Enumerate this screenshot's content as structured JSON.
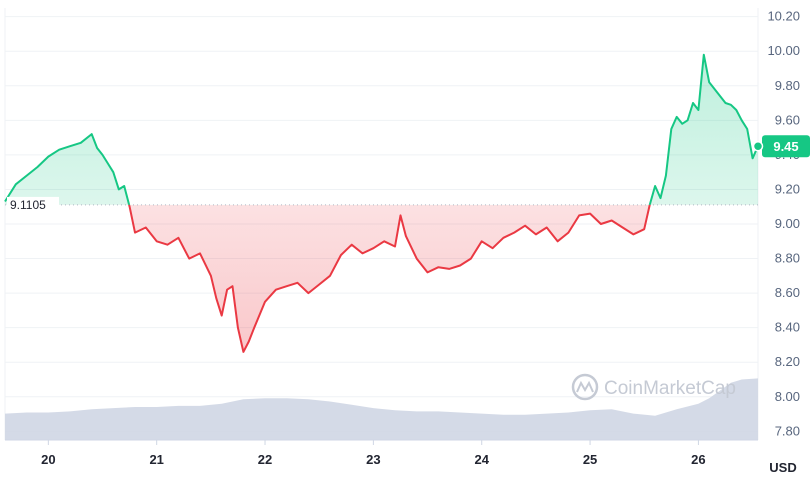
{
  "chart_data": {
    "type": "line",
    "currency": "USD",
    "baseline": {
      "value": 9.1105,
      "label": "9.1105"
    },
    "current_price": {
      "value": 9.45,
      "label": "9.45"
    },
    "ylim": [
      7.75,
      10.25
    ],
    "y_ticks": [
      "10.20",
      "10.00",
      "9.80",
      "9.60",
      "9.40",
      "9.20",
      "9.00",
      "8.80",
      "8.60",
      "8.40",
      "8.20",
      "8.00",
      "7.80"
    ],
    "x_range": [
      19.6,
      26.55
    ],
    "x_ticks": [
      "20",
      "21",
      "22",
      "23",
      "24",
      "25",
      "26"
    ],
    "price_series": {
      "x": [
        19.6,
        19.7,
        19.8,
        19.9,
        20.0,
        20.1,
        20.2,
        20.3,
        20.4,
        20.45,
        20.5,
        20.55,
        20.6,
        20.65,
        20.7,
        20.75,
        20.8,
        20.9,
        21.0,
        21.1,
        21.2,
        21.3,
        21.4,
        21.5,
        21.55,
        21.6,
        21.65,
        21.7,
        21.75,
        21.8,
        21.85,
        21.9,
        22.0,
        22.1,
        22.2,
        22.3,
        22.4,
        22.5,
        22.6,
        22.7,
        22.8,
        22.9,
        23.0,
        23.1,
        23.2,
        23.25,
        23.3,
        23.4,
        23.5,
        23.6,
        23.7,
        23.8,
        23.9,
        24.0,
        24.1,
        24.2,
        24.3,
        24.4,
        24.5,
        24.6,
        24.7,
        24.8,
        24.9,
        25.0,
        25.1,
        25.2,
        25.3,
        25.4,
        25.5,
        25.55,
        25.6,
        25.65,
        25.7,
        25.75,
        25.8,
        25.85,
        25.9,
        25.95,
        26.0,
        26.05,
        26.1,
        26.15,
        26.2,
        26.25,
        26.3,
        26.35,
        26.4,
        26.45,
        26.5,
        26.55
      ],
      "y": [
        9.13,
        9.23,
        9.28,
        9.33,
        9.39,
        9.43,
        9.45,
        9.47,
        9.52,
        9.44,
        9.4,
        9.35,
        9.3,
        9.2,
        9.22,
        9.1,
        8.95,
        8.98,
        8.9,
        8.88,
        8.92,
        8.8,
        8.83,
        8.7,
        8.57,
        8.47,
        8.62,
        8.64,
        8.4,
        8.26,
        8.32,
        8.4,
        8.55,
        8.62,
        8.64,
        8.66,
        8.6,
        8.65,
        8.7,
        8.82,
        8.88,
        8.83,
        8.86,
        8.9,
        8.87,
        9.05,
        8.93,
        8.8,
        8.72,
        8.75,
        8.74,
        8.76,
        8.8,
        8.9,
        8.86,
        8.92,
        8.95,
        8.99,
        8.94,
        8.98,
        8.9,
        8.95,
        9.05,
        9.06,
        9.0,
        9.02,
        8.98,
        8.94,
        8.97,
        9.11,
        9.22,
        9.15,
        9.28,
        9.55,
        9.62,
        9.58,
        9.6,
        9.7,
        9.66,
        9.98,
        9.82,
        9.78,
        9.74,
        9.7,
        9.69,
        9.66,
        9.6,
        9.55,
        9.38,
        9.45
      ]
    },
    "volume_series": {
      "x": [
        19.6,
        19.8,
        20.0,
        20.2,
        20.4,
        20.6,
        20.8,
        21.0,
        21.2,
        21.4,
        21.6,
        21.8,
        22.0,
        22.2,
        22.4,
        22.6,
        22.8,
        23.0,
        23.2,
        23.4,
        23.6,
        23.8,
        24.0,
        24.2,
        24.4,
        24.6,
        24.8,
        25.0,
        25.2,
        25.4,
        25.6,
        25.8,
        26.0,
        26.1,
        26.2,
        26.3,
        26.4,
        26.55
      ],
      "values": [
        0.24,
        0.25,
        0.25,
        0.26,
        0.28,
        0.29,
        0.3,
        0.3,
        0.31,
        0.31,
        0.33,
        0.37,
        0.38,
        0.38,
        0.37,
        0.35,
        0.32,
        0.29,
        0.27,
        0.26,
        0.26,
        0.25,
        0.24,
        0.23,
        0.23,
        0.24,
        0.25,
        0.27,
        0.28,
        0.24,
        0.22,
        0.28,
        0.33,
        0.38,
        0.45,
        0.52,
        0.55,
        0.56
      ]
    },
    "colors": {
      "up": "#16c784",
      "down": "#ea3943",
      "volume": "#cfd6e4",
      "baseline": "#b0b8c5",
      "badge": "#16c784"
    }
  },
  "watermark": {
    "text": "CoinMarketCap",
    "icon": "coinmarketcap-logo-icon"
  }
}
